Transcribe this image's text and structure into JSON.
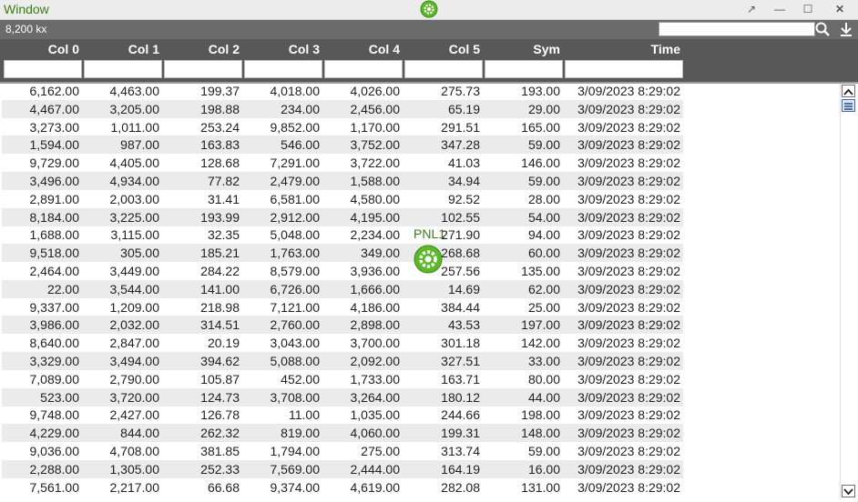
{
  "window": {
    "title": "Window",
    "controls": {
      "popout": "↗",
      "minimize": "—",
      "maximize": "☐",
      "close": "✕"
    }
  },
  "toolbar": {
    "count": "8,200 kx",
    "search_value": "",
    "search_icon": "search-icon",
    "download_icon": "download-icon"
  },
  "floating_panel": {
    "label": "PNL1",
    "icon": "gear-icon"
  },
  "colors": {
    "accent": "#3a7d12",
    "header_bg": "#585858",
    "toolbar_bg": "#6b6b6b",
    "alt_row": "#ebebeb"
  },
  "grid": {
    "columns": [
      "Col 0",
      "Col 1",
      "Col 2",
      "Col 3",
      "Col 4",
      "Col 5",
      "Sym",
      "Time"
    ],
    "rows": [
      [
        "6,162.00",
        "4,463.00",
        "199.37",
        "4,018.00",
        "4,026.00",
        "275.73",
        "193.00",
        "3/09/2023 8:29:02"
      ],
      [
        "4,467.00",
        "3,205.00",
        "198.88",
        "234.00",
        "2,456.00",
        "65.19",
        "29.00",
        "3/09/2023 8:29:02"
      ],
      [
        "3,273.00",
        "1,011.00",
        "253.24",
        "9,852.00",
        "1,170.00",
        "291.51",
        "165.00",
        "3/09/2023 8:29:02"
      ],
      [
        "1,594.00",
        "987.00",
        "163.83",
        "546.00",
        "3,752.00",
        "347.28",
        "59.00",
        "3/09/2023 8:29:02"
      ],
      [
        "9,729.00",
        "4,405.00",
        "128.68",
        "7,291.00",
        "3,722.00",
        "41.03",
        "146.00",
        "3/09/2023 8:29:02"
      ],
      [
        "3,496.00",
        "4,934.00",
        "77.82",
        "2,479.00",
        "1,588.00",
        "34.94",
        "59.00",
        "3/09/2023 8:29:02"
      ],
      [
        "2,891.00",
        "2,003.00",
        "31.41",
        "6,581.00",
        "4,580.00",
        "92.52",
        "28.00",
        "3/09/2023 8:29:02"
      ],
      [
        "8,184.00",
        "3,225.00",
        "193.99",
        "2,912.00",
        "4,195.00",
        "102.55",
        "54.00",
        "3/09/2023 8:29:02"
      ],
      [
        "1,688.00",
        "3,115.00",
        "32.35",
        "5,048.00",
        "2,234.00",
        "271.90",
        "94.00",
        "3/09/2023 8:29:02"
      ],
      [
        "9,518.00",
        "305.00",
        "185.21",
        "1,763.00",
        "349.00",
        "268.68",
        "60.00",
        "3/09/2023 8:29:02"
      ],
      [
        "2,464.00",
        "3,449.00",
        "284.22",
        "8,579.00",
        "3,936.00",
        "257.56",
        "135.00",
        "3/09/2023 8:29:02"
      ],
      [
        "22.00",
        "3,544.00",
        "141.00",
        "6,726.00",
        "1,666.00",
        "14.69",
        "62.00",
        "3/09/2023 8:29:02"
      ],
      [
        "9,337.00",
        "1,209.00",
        "218.98",
        "7,121.00",
        "4,186.00",
        "384.44",
        "25.00",
        "3/09/2023 8:29:02"
      ],
      [
        "3,986.00",
        "2,032.00",
        "314.51",
        "2,760.00",
        "2,898.00",
        "43.53",
        "197.00",
        "3/09/2023 8:29:02"
      ],
      [
        "8,640.00",
        "2,847.00",
        "20.19",
        "3,043.00",
        "3,700.00",
        "301.18",
        "142.00",
        "3/09/2023 8:29:02"
      ],
      [
        "3,329.00",
        "3,494.00",
        "394.62",
        "5,088.00",
        "2,092.00",
        "327.51",
        "33.00",
        "3/09/2023 8:29:02"
      ],
      [
        "7,089.00",
        "2,790.00",
        "105.87",
        "452.00",
        "1,733.00",
        "163.71",
        "80.00",
        "3/09/2023 8:29:02"
      ],
      [
        "523.00",
        "3,720.00",
        "124.73",
        "3,708.00",
        "3,264.00",
        "180.12",
        "44.00",
        "3/09/2023 8:29:02"
      ],
      [
        "9,748.00",
        "2,427.00",
        "126.78",
        "11.00",
        "1,035.00",
        "244.66",
        "198.00",
        "3/09/2023 8:29:02"
      ],
      [
        "4,229.00",
        "844.00",
        "262.32",
        "819.00",
        "4,060.00",
        "199.31",
        "148.00",
        "3/09/2023 8:29:02"
      ],
      [
        "9,036.00",
        "4,708.00",
        "381.85",
        "1,794.00",
        "275.00",
        "313.74",
        "59.00",
        "3/09/2023 8:29:02"
      ],
      [
        "2,288.00",
        "1,305.00",
        "252.33",
        "7,569.00",
        "2,444.00",
        "164.19",
        "16.00",
        "3/09/2023 8:29:02"
      ],
      [
        "7,561.00",
        "2,217.00",
        "66.68",
        "9,374.00",
        "4,619.00",
        "282.08",
        "131.00",
        "3/09/2023 8:29:02"
      ]
    ]
  }
}
